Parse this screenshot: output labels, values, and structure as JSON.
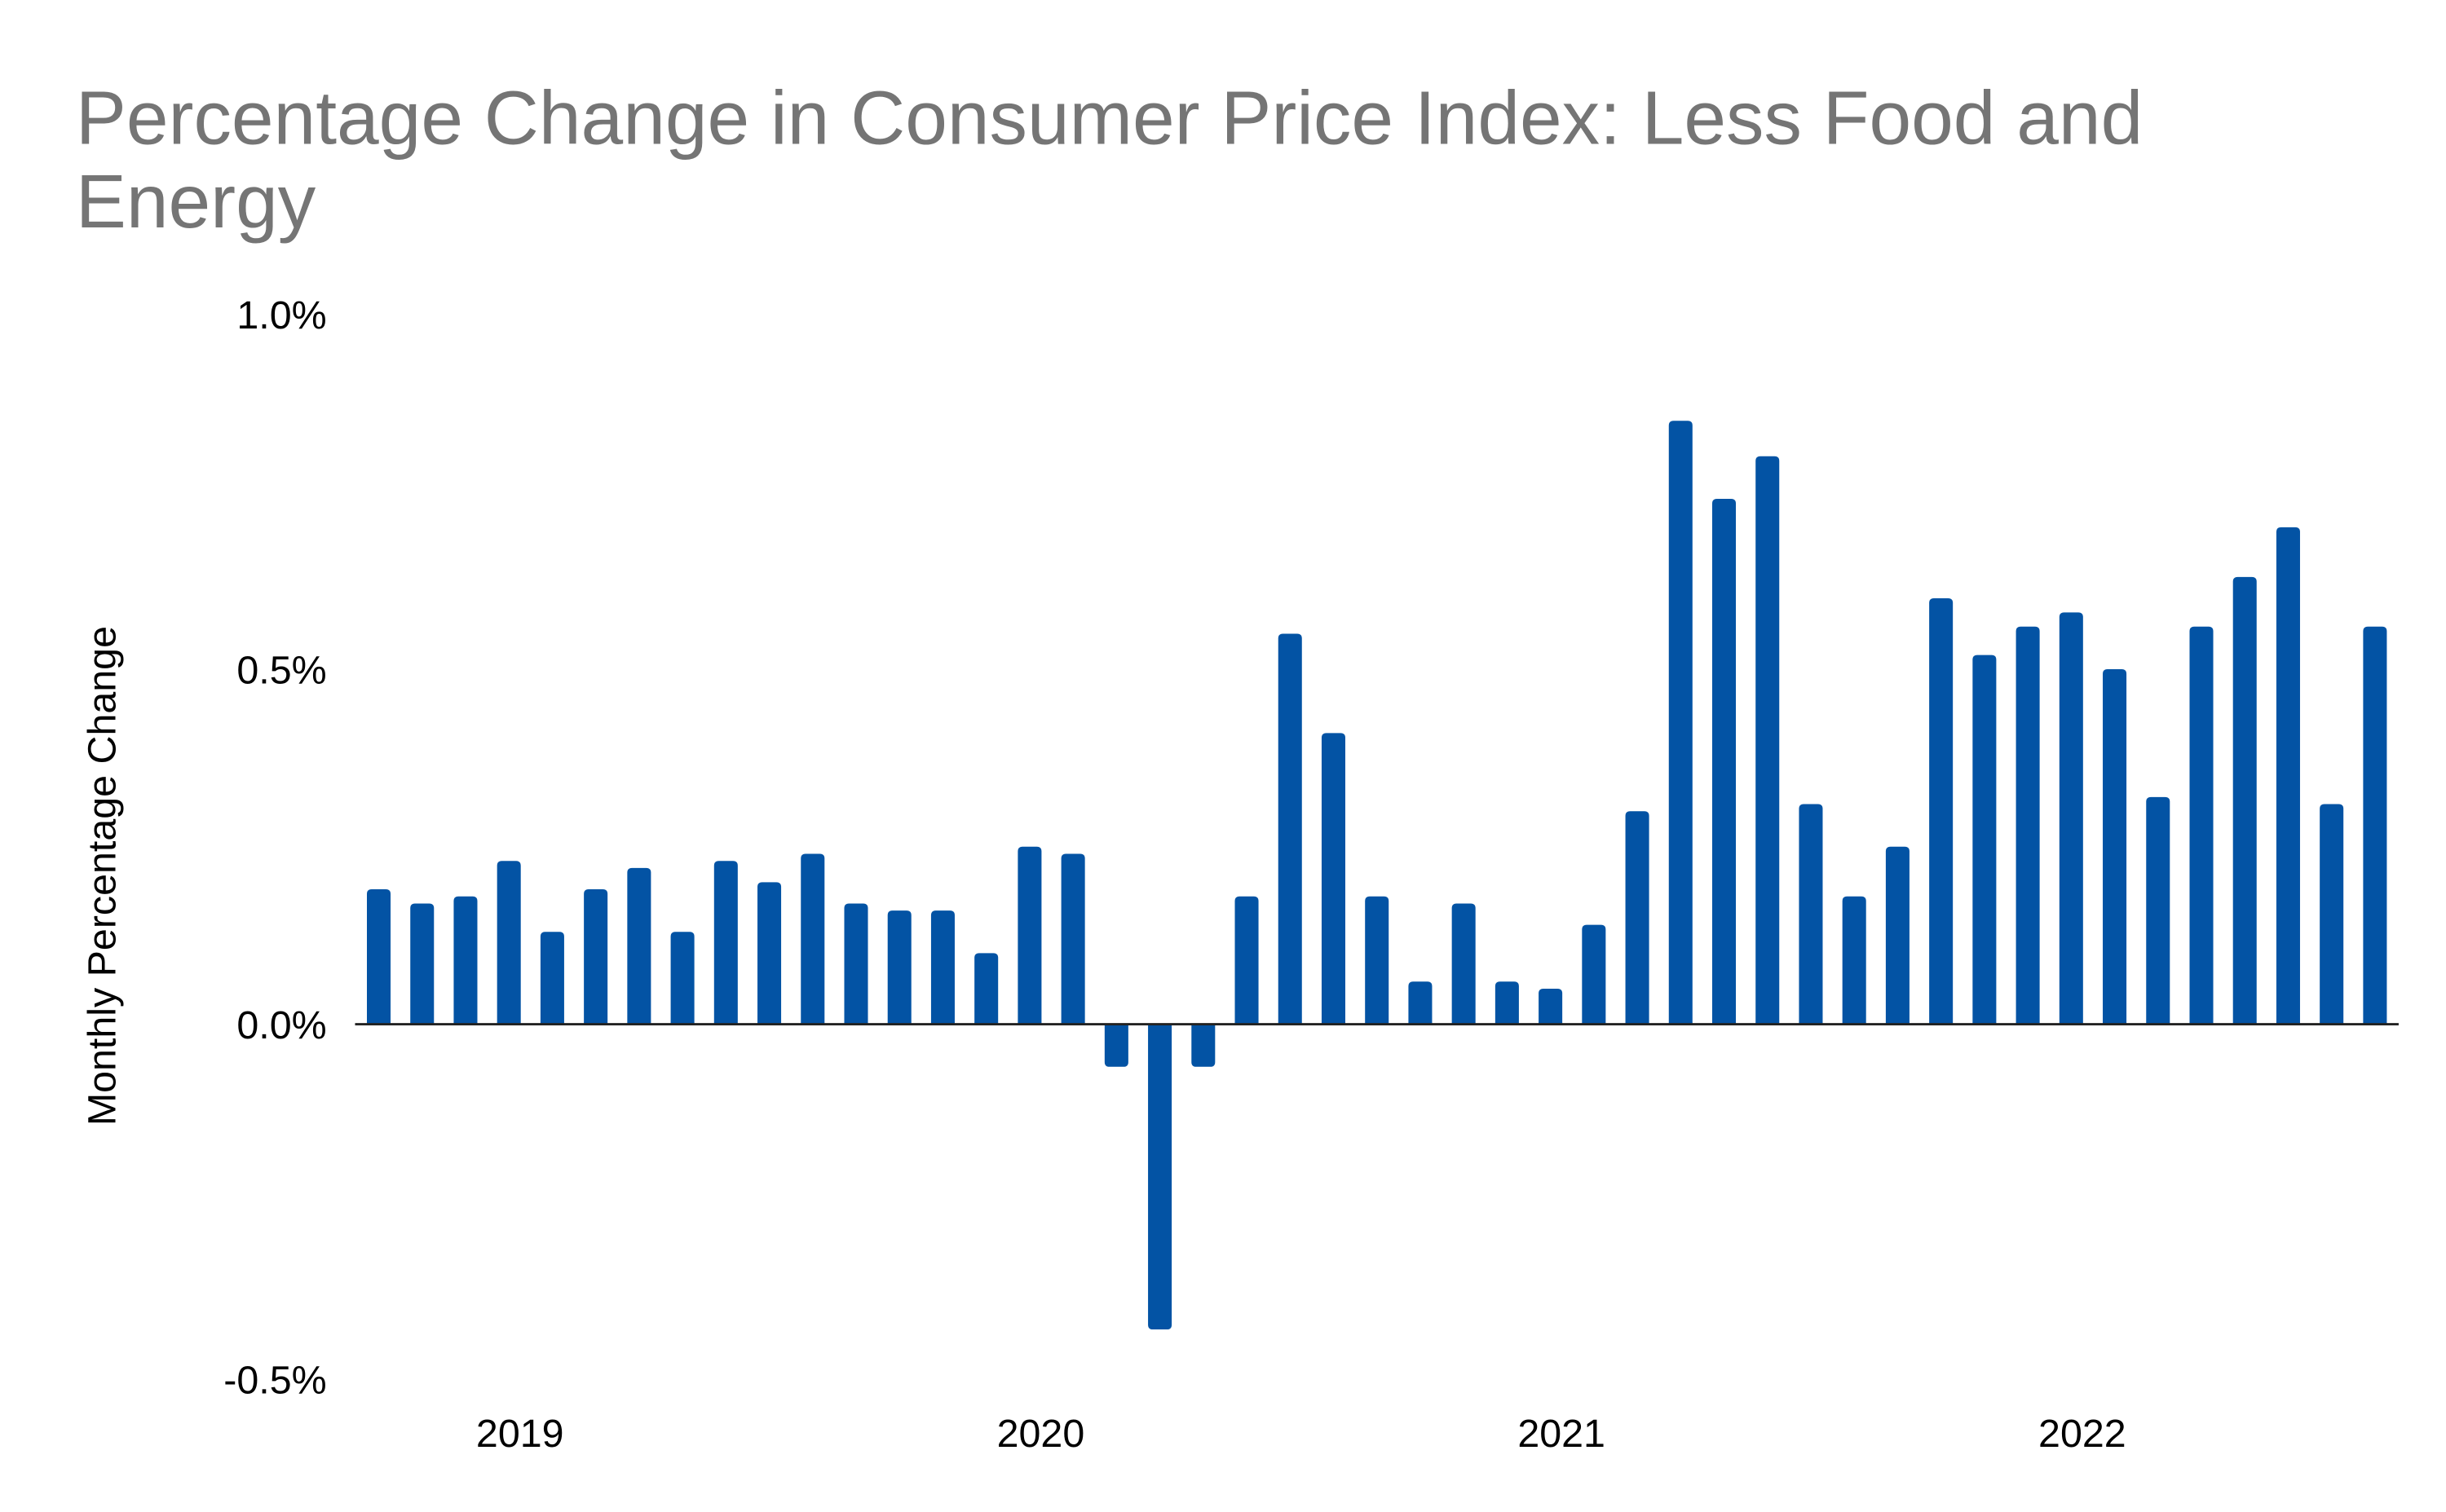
{
  "chart_data": {
    "type": "bar",
    "title_lines": [
      "Percentage Change in Consumer Price Index: Less Food and",
      "Energy"
    ],
    "title": "Percentage Change in Consumer Price Index: Less Food and Energy",
    "xlabel": "",
    "ylabel": "Monthly Percentage Change",
    "ylim": [
      -0.5,
      1.0
    ],
    "yticks": [
      1.0,
      0.5,
      0.0,
      -0.5
    ],
    "ytick_labels": [
      "1.0%",
      "0.5%",
      "0.0%",
      "-0.5%"
    ],
    "xtick_labels": [
      "2019",
      "2020",
      "2021",
      "2022"
    ],
    "xtick_first_bar_index": [
      3,
      15,
      27,
      39
    ],
    "grid": false,
    "bar_color": "#0353A4",
    "categories": [
      "2018-10",
      "2018-11",
      "2018-12",
      "2019-01",
      "2019-02",
      "2019-03",
      "2019-04",
      "2019-05",
      "2019-06",
      "2019-07",
      "2019-08",
      "2019-09",
      "2019-10",
      "2019-11",
      "2019-12",
      "2020-01",
      "2020-02",
      "2020-03",
      "2020-04",
      "2020-05",
      "2020-06",
      "2020-07",
      "2020-08",
      "2020-09",
      "2020-10",
      "2020-11",
      "2020-12",
      "2021-01",
      "2021-02",
      "2021-03",
      "2021-04",
      "2021-05",
      "2021-06",
      "2021-07",
      "2021-08",
      "2021-09",
      "2021-10",
      "2021-11",
      "2021-12",
      "2022-01",
      "2022-02",
      "2022-03",
      "2022-04",
      "2022-05",
      "2022-06",
      "2022-07",
      "2022-08"
    ],
    "values": [
      0.19,
      0.17,
      0.18,
      0.23,
      0.13,
      0.19,
      0.22,
      0.13,
      0.23,
      0.2,
      0.24,
      0.17,
      0.16,
      0.16,
      0.1,
      0.25,
      0.24,
      -0.06,
      -0.43,
      -0.06,
      0.18,
      0.55,
      0.41,
      0.18,
      0.06,
      0.17,
      0.06,
      0.05,
      0.14,
      0.3,
      0.85,
      0.74,
      0.8,
      0.31,
      0.18,
      0.25,
      0.6,
      0.52,
      0.56,
      0.58,
      0.5,
      0.32,
      0.56,
      0.63,
      0.7,
      0.31,
      0.56
    ]
  }
}
